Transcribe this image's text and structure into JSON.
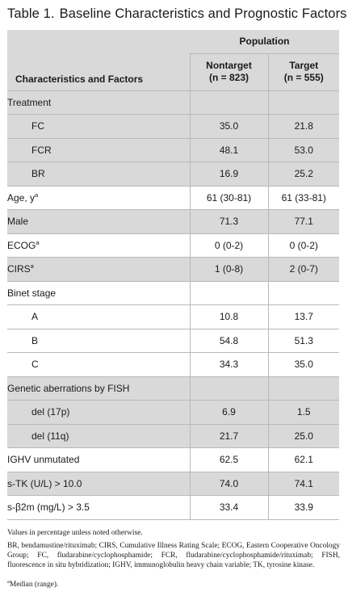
{
  "title": {
    "label": "Table 1.",
    "text": "Baseline Characteristics and Prognostic Factors"
  },
  "header": {
    "population": "Population",
    "characteristics": "Characteristics and Factors",
    "nontarget_name": "Nontarget",
    "nontarget_n": "(n = 823)",
    "target_name": "Target",
    "target_n": "(n = 555)"
  },
  "rows": [
    {
      "label": "Treatment",
      "sup": "",
      "nontarget": "",
      "target": "",
      "style": "grey",
      "indent": false
    },
    {
      "label": "FC",
      "sup": "",
      "nontarget": "35.0",
      "target": "21.8",
      "style": "grey",
      "indent": true
    },
    {
      "label": "FCR",
      "sup": "",
      "nontarget": "48.1",
      "target": "53.0",
      "style": "grey",
      "indent": true
    },
    {
      "label": "BR",
      "sup": "",
      "nontarget": "16.9",
      "target": "25.2",
      "style": "grey",
      "indent": true
    },
    {
      "label": "Age, y",
      "sup": "a",
      "nontarget": "61 (30-81)",
      "target": "61 (33-81)",
      "style": "sub",
      "indent": false
    },
    {
      "label": "Male",
      "sup": "",
      "nontarget": "71.3",
      "target": "77.1",
      "style": "grey",
      "indent": false
    },
    {
      "label": "ECOG",
      "sup": "a",
      "nontarget": "0 (0-2)",
      "target": "0 (0-2)",
      "style": "sub",
      "indent": false
    },
    {
      "label": "CIRS",
      "sup": "a",
      "nontarget": "1 (0-8)",
      "target": "2 (0-7)",
      "style": "grey",
      "indent": false
    },
    {
      "label": "Binet stage",
      "sup": "",
      "nontarget": "",
      "target": "",
      "style": "sub",
      "indent": false
    },
    {
      "label": "A",
      "sup": "",
      "nontarget": "10.8",
      "target": "13.7",
      "style": "sub",
      "indent": true
    },
    {
      "label": "B",
      "sup": "",
      "nontarget": "54.8",
      "target": "51.3",
      "style": "sub",
      "indent": true
    },
    {
      "label": "C",
      "sup": "",
      "nontarget": "34.3",
      "target": "35.0",
      "style": "sub",
      "indent": true
    },
    {
      "label": "Genetic aberrations by FISH",
      "sup": "",
      "nontarget": "",
      "target": "",
      "style": "grey",
      "indent": false
    },
    {
      "label": "del (17p)",
      "sup": "",
      "nontarget": "6.9",
      "target": "1.5",
      "style": "grey",
      "indent": true
    },
    {
      "label": "del (11q)",
      "sup": "",
      "nontarget": "21.7",
      "target": "25.0",
      "style": "grey",
      "indent": true
    },
    {
      "label": "IGHV unmutated",
      "sup": "",
      "nontarget": "62.5",
      "target": "62.1",
      "style": "sub",
      "indent": false
    },
    {
      "label": "s-TK (U/L) > 10.0",
      "sup": "",
      "nontarget": "74.0",
      "target": "74.1",
      "style": "grey",
      "indent": false
    },
    {
      "label": "s-β2m (mg/L) > 3.5",
      "sup": "",
      "nontarget": "33.4",
      "target": "33.9",
      "style": "sub",
      "indent": false
    }
  ],
  "footnotes": {
    "note1": "Values in percentage unless noted otherwise.",
    "note2": "BR, bendamustine/rituximab; CIRS, Cumulative Illness Rating Scale; ECOG, Eastern Cooperative Oncology Group; FC, fludarabine/cyclophosphamide; FCR, fludarabine/cyclophosphamide/rituximab; FISH, fluorescence in situ hybridization; IGHV, immunoglobulin heavy chain variable; TK, tyrosine kinase.",
    "note3_mark": "a",
    "note3": "Median (range)."
  }
}
